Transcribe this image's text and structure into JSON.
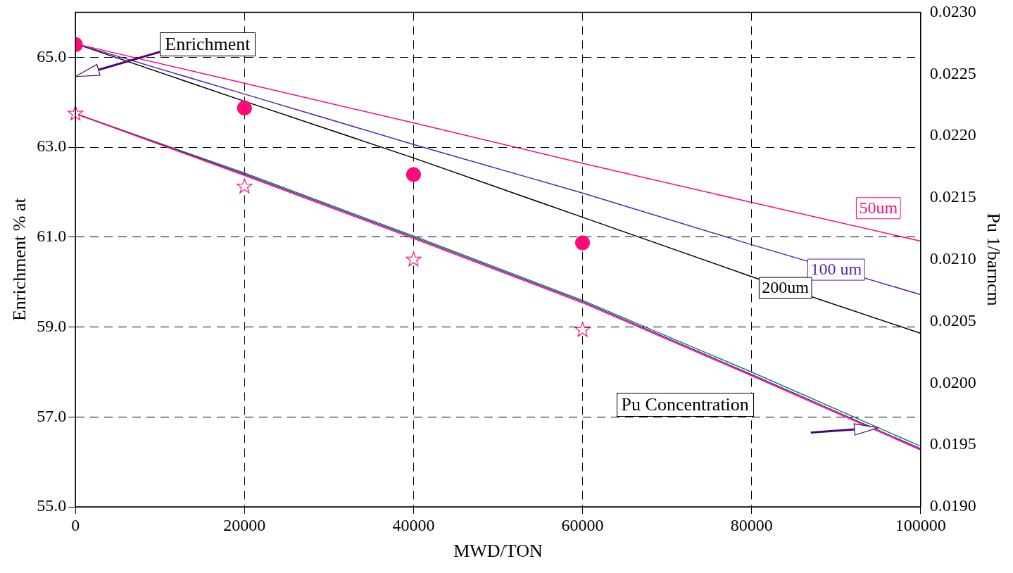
{
  "chart_data": {
    "type": "line",
    "xlabel": "MWD/TON",
    "ylabel": "Enrichment % at",
    "y2label": "Pu 1/barncm",
    "x": [
      0,
      20000,
      40000,
      60000,
      80000,
      100000
    ],
    "xlim": [
      0,
      100000
    ],
    "xticks": [
      0,
      20000,
      40000,
      60000,
      80000,
      100000
    ],
    "ylim": [
      55,
      66
    ],
    "yticks": [
      {
        "value": 55,
        "label": "55.0"
      },
      {
        "value": 57,
        "label": "57.0"
      },
      {
        "value": 59,
        "label": "59.0"
      },
      {
        "value": 61,
        "label": "61.0"
      },
      {
        "value": 63,
        "label": "63.0"
      },
      {
        "value": 65,
        "label": "65.0"
      }
    ],
    "y2lim": [
      0.019,
      0.023
    ],
    "y2ticks": [
      {
        "value": 0.019,
        "label": "0.0190"
      },
      {
        "value": 0.0195,
        "label": "0.0195"
      },
      {
        "value": 0.02,
        "label": "0.0200"
      },
      {
        "value": 0.0205,
        "label": "0.0205"
      },
      {
        "value": 0.021,
        "label": "0.0210"
      },
      {
        "value": 0.0215,
        "label": "0.0215"
      },
      {
        "value": 0.022,
        "label": "0.0220"
      },
      {
        "value": 0.0225,
        "label": "0.0225"
      },
      {
        "value": 0.023,
        "label": "0.0230"
      }
    ],
    "grid": true,
    "legend": false,
    "line_style": "solid",
    "annotations": [
      "Enrichment",
      "Pu Concentration"
    ],
    "series": [
      {
        "name": "50um",
        "color": "#ff0a78",
        "marker": "none",
        "values": [
          65.3,
          64.42,
          63.54,
          62.64,
          61.77,
          60.91
        ]
      },
      {
        "name": "100 um",
        "color": "#5a1eb4",
        "marker": "none",
        "values": [
          65.3,
          64.18,
          63.06,
          61.98,
          60.83,
          59.72
        ]
      },
      {
        "name": "200um",
        "color": "#000000",
        "marker": "none",
        "values": [
          65.3,
          64.02,
          62.76,
          61.44,
          60.12,
          58.86
        ]
      },
      {
        "color": "#ff0a78",
        "axis": "y2",
        "marker": "none",
        "values": [
          0.02218,
          0.02168,
          0.02117,
          0.02065,
          0.02006,
          0.01946
        ]
      },
      {
        "color": "#5a1eb4",
        "axis": "y2",
        "marker": "none",
        "values": [
          0.02218,
          0.02169,
          0.02118,
          0.02066,
          0.02007,
          0.01947
        ]
      },
      {
        "color": "#0a8a50",
        "axis": "y2",
        "marker": "none",
        "values": [
          0.02218,
          0.0217,
          0.02119,
          0.02067,
          0.02009,
          0.01949
        ]
      },
      {
        "type": "scatter",
        "color": "#ff0a78",
        "marker": "circle",
        "x": [
          0,
          20000,
          40000,
          60000
        ],
        "values": [
          65.28,
          63.87,
          62.39,
          60.87
        ]
      },
      {
        "type": "scatter",
        "color": "#ff0a78",
        "axis": "y2",
        "marker": "star",
        "x": [
          0,
          20000,
          40000,
          60000
        ],
        "values": [
          0.02218,
          0.02159,
          0.021,
          0.02043
        ]
      }
    ]
  }
}
